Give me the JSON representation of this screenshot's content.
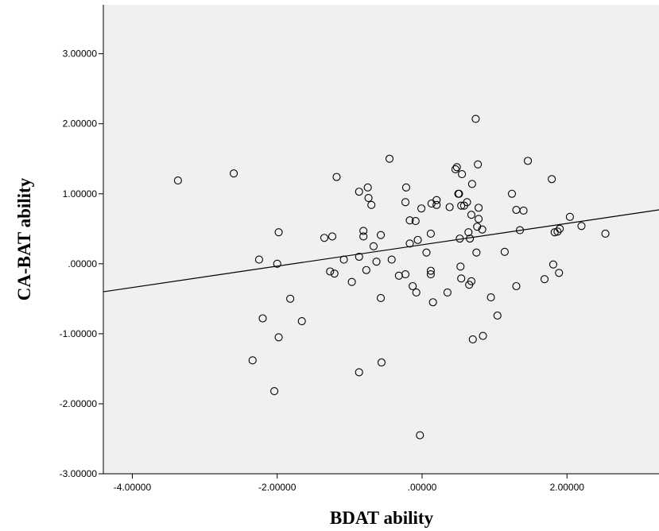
{
  "chart_data": {
    "type": "scatter",
    "xlabel": "BDAT ability",
    "ylabel": "CA-BAT ability",
    "xlim": [
      -4.4,
      3.27
    ],
    "ylim": [
      -3.0,
      3.7
    ],
    "xticks": [
      -4,
      -2,
      0,
      2
    ],
    "xtick_labels": [
      "-4.00000",
      "-2.00000",
      ".00000",
      "2.00000"
    ],
    "yticks": [
      -3,
      -2,
      -1,
      0,
      1,
      2,
      3
    ],
    "ytick_labels": [
      "-3.00000",
      "-2.00000",
      "-1.00000",
      ".00000",
      "1.00000",
      "2.00000",
      "3.00000"
    ],
    "grid": false,
    "colors": {
      "plot_background": "#f0f0f0",
      "marker": "#000000",
      "fit_line": "#000000"
    },
    "fit_line": {
      "x": [
        -4.4,
        3.27
      ],
      "y": [
        -0.4,
        0.77
      ]
    },
    "series": [
      {
        "points": [
          [
            -3.37,
            1.19
          ],
          [
            -2.6,
            1.29
          ],
          [
            -2.34,
            -1.38
          ],
          [
            -2.25,
            0.06
          ],
          [
            -2.2,
            -0.78
          ],
          [
            -2.04,
            -1.82
          ],
          [
            -2.0,
            0.0
          ],
          [
            -1.98,
            0.45
          ],
          [
            -1.98,
            -1.05
          ],
          [
            -1.82,
            -0.5
          ],
          [
            -1.66,
            -0.82
          ],
          [
            -1.35,
            0.37
          ],
          [
            -1.27,
            -0.11
          ],
          [
            -1.24,
            0.39
          ],
          [
            -1.21,
            -0.14
          ],
          [
            -1.18,
            1.24
          ],
          [
            -1.08,
            0.06
          ],
          [
            -0.97,
            -0.26
          ],
          [
            -0.87,
            0.1
          ],
          [
            -0.87,
            1.03
          ],
          [
            -0.87,
            -1.55
          ],
          [
            -0.81,
            0.47
          ],
          [
            -0.81,
            0.39
          ],
          [
            -0.77,
            -0.09
          ],
          [
            -0.75,
            1.09
          ],
          [
            -0.74,
            0.94
          ],
          [
            -0.7,
            0.84
          ],
          [
            -0.67,
            0.25
          ],
          [
            -0.63,
            0.03
          ],
          [
            -0.57,
            0.41
          ],
          [
            -0.57,
            -0.49
          ],
          [
            -0.56,
            -1.41
          ],
          [
            -0.45,
            1.5
          ],
          [
            -0.42,
            0.06
          ],
          [
            -0.32,
            -0.17
          ],
          [
            -0.23,
            -0.15
          ],
          [
            -0.23,
            0.88
          ],
          [
            -0.22,
            1.09
          ],
          [
            -0.17,
            0.29
          ],
          [
            -0.17,
            0.62
          ],
          [
            -0.13,
            -0.32
          ],
          [
            -0.09,
            0.61
          ],
          [
            -0.08,
            -0.41
          ],
          [
            -0.06,
            0.34
          ],
          [
            -0.03,
            -2.45
          ],
          [
            -0.01,
            0.79
          ],
          [
            0.06,
            0.16
          ],
          [
            0.12,
            -0.1
          ],
          [
            0.12,
            -0.15
          ],
          [
            0.12,
            0.43
          ],
          [
            0.13,
            0.86
          ],
          [
            0.15,
            -0.55
          ],
          [
            0.2,
            0.84
          ],
          [
            0.2,
            0.91
          ],
          [
            0.35,
            -0.41
          ],
          [
            0.38,
            0.81
          ],
          [
            0.46,
            1.35
          ],
          [
            0.48,
            1.38
          ],
          [
            0.5,
            1.0
          ],
          [
            0.51,
            1.0
          ],
          [
            0.52,
            0.36
          ],
          [
            0.53,
            -0.04
          ],
          [
            0.54,
            0.83
          ],
          [
            0.54,
            -0.21
          ],
          [
            0.55,
            1.28
          ],
          [
            0.58,
            0.83
          ],
          [
            0.62,
            0.88
          ],
          [
            0.64,
            0.45
          ],
          [
            0.65,
            -0.3
          ],
          [
            0.66,
            0.36
          ],
          [
            0.68,
            0.7
          ],
          [
            0.68,
            -0.25
          ],
          [
            0.69,
            1.14
          ],
          [
            0.7,
            -1.08
          ],
          [
            0.74,
            2.07
          ],
          [
            0.75,
            0.16
          ],
          [
            0.76,
            0.53
          ],
          [
            0.77,
            1.42
          ],
          [
            0.78,
            0.64
          ],
          [
            0.78,
            0.8
          ],
          [
            0.83,
            0.49
          ],
          [
            0.84,
            -1.03
          ],
          [
            0.95,
            -0.48
          ],
          [
            1.04,
            -0.74
          ],
          [
            1.14,
            0.17
          ],
          [
            1.24,
            1.0
          ],
          [
            1.3,
            0.77
          ],
          [
            1.3,
            -0.32
          ],
          [
            1.35,
            0.48
          ],
          [
            1.4,
            0.76
          ],
          [
            1.46,
            1.47
          ],
          [
            1.69,
            -0.22
          ],
          [
            1.79,
            1.21
          ],
          [
            1.81,
            -0.01
          ],
          [
            1.83,
            0.45
          ],
          [
            1.87,
            0.46
          ],
          [
            1.89,
            -0.13
          ],
          [
            1.9,
            0.5
          ],
          [
            2.04,
            0.67
          ],
          [
            2.2,
            0.54
          ],
          [
            2.53,
            0.43
          ]
        ]
      }
    ]
  }
}
